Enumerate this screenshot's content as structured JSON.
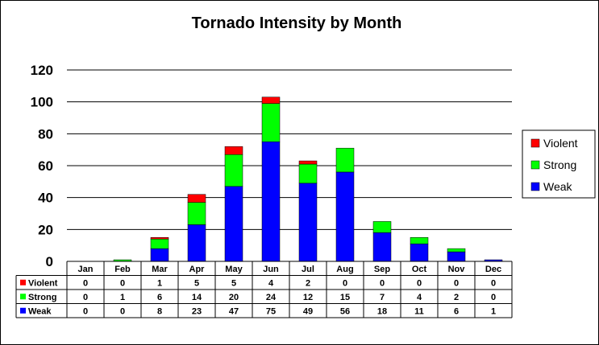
{
  "chart_data": {
    "type": "bar",
    "stacked": true,
    "title": "Tornado Intensity by Month",
    "xlabel": "",
    "ylabel": "",
    "ylim": [
      0,
      120
    ],
    "yticks": [
      0,
      20,
      40,
      60,
      80,
      100,
      120
    ],
    "grid": true,
    "legend_position": "right",
    "data_table": true,
    "categories": [
      "Jan",
      "Feb",
      "Mar",
      "Apr",
      "May",
      "Jun",
      "Jul",
      "Aug",
      "Sep",
      "Oct",
      "Nov",
      "Dec"
    ],
    "series": [
      {
        "name": "Weak",
        "color": "#0000ff",
        "values": [
          0,
          0,
          8,
          23,
          47,
          75,
          49,
          56,
          18,
          11,
          6,
          1
        ]
      },
      {
        "name": "Strong",
        "color": "#00ff00",
        "values": [
          0,
          1,
          6,
          14,
          20,
          24,
          12,
          15,
          7,
          4,
          2,
          0
        ]
      },
      {
        "name": "Violent",
        "color": "#ff0000",
        "values": [
          0,
          0,
          1,
          5,
          5,
          4,
          2,
          0,
          0,
          0,
          0,
          0
        ]
      }
    ],
    "legend_order": [
      "Violent",
      "Strong",
      "Weak"
    ],
    "table_order": [
      "Violent",
      "Strong",
      "Weak"
    ]
  }
}
